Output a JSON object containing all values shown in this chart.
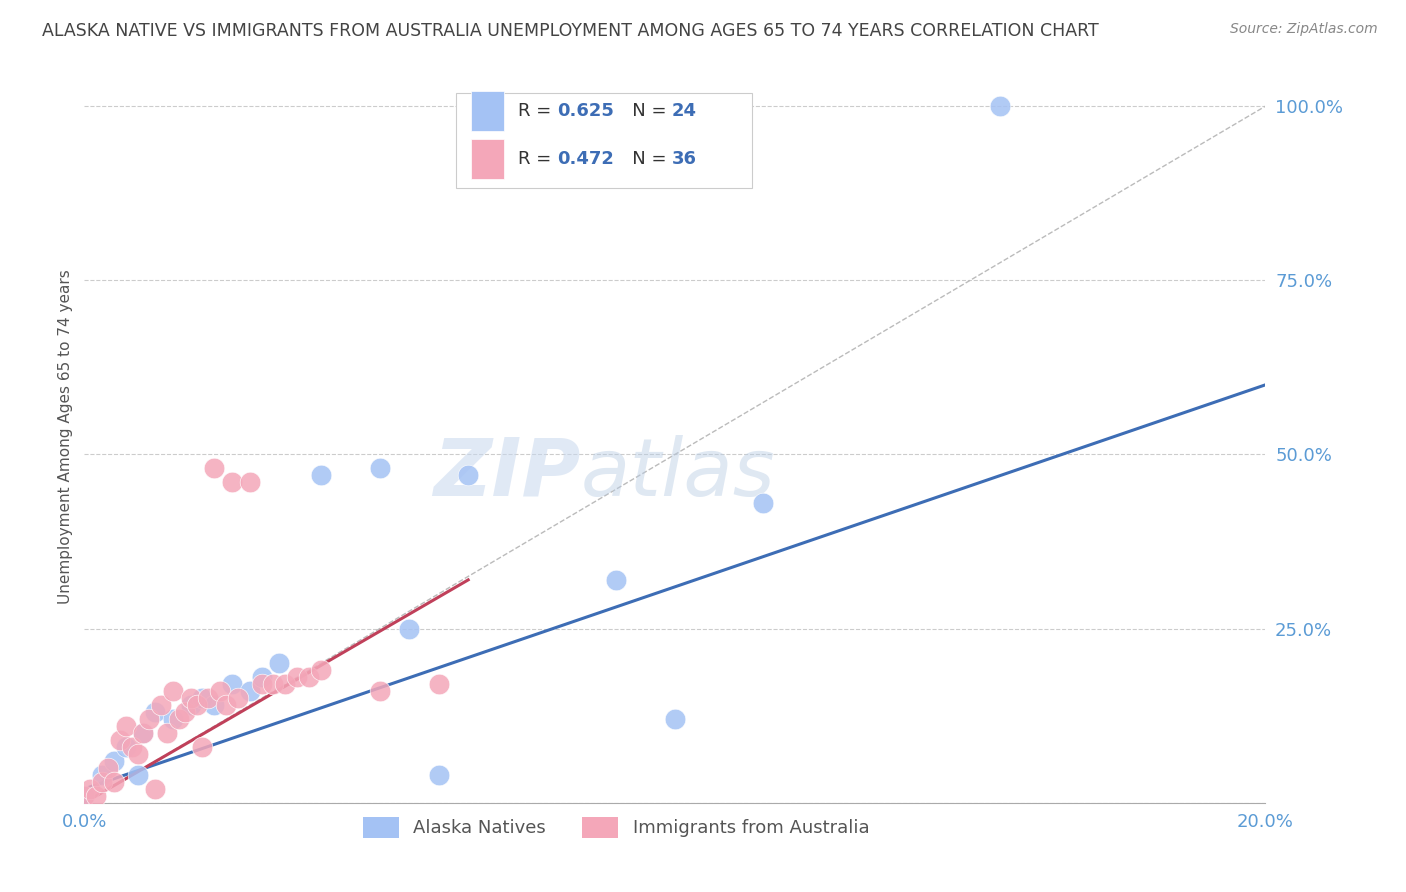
{
  "title": "ALASKA NATIVE VS IMMIGRANTS FROM AUSTRALIA UNEMPLOYMENT AMONG AGES 65 TO 74 YEARS CORRELATION CHART",
  "source": "Source: ZipAtlas.com",
  "ylabel": "Unemployment Among Ages 65 to 74 years",
  "xlim": [
    0.0,
    0.2
  ],
  "ylim": [
    0.0,
    1.05
  ],
  "yticks": [
    0.0,
    0.25,
    0.5,
    0.75,
    1.0
  ],
  "ytick_labels": [
    "",
    "25.0%",
    "50.0%",
    "75.0%",
    "100.0%"
  ],
  "xticks": [
    0.0,
    0.04,
    0.08,
    0.12,
    0.16,
    0.2
  ],
  "xtick_labels": [
    "0.0%",
    "",
    "",
    "",
    "",
    "20.0%"
  ],
  "alaska_color": "#a4c2f4",
  "australia_color": "#f4a7b9",
  "alaska_line_color": "#3d6db5",
  "australia_line_color": "#c0405a",
  "diagonal_color": "#bbbbbb",
  "alaska_scatter_x": [
    0.0,
    0.003,
    0.005,
    0.007,
    0.009,
    0.01,
    0.012,
    0.015,
    0.018,
    0.02,
    0.022,
    0.025,
    0.028,
    0.03,
    0.033,
    0.04,
    0.05,
    0.055,
    0.06,
    0.065,
    0.09,
    0.1,
    0.115,
    0.155
  ],
  "alaska_scatter_y": [
    0.01,
    0.04,
    0.06,
    0.08,
    0.04,
    0.1,
    0.13,
    0.12,
    0.14,
    0.15,
    0.14,
    0.17,
    0.16,
    0.18,
    0.2,
    0.47,
    0.48,
    0.25,
    0.04,
    0.47,
    0.32,
    0.12,
    0.43,
    1.0
  ],
  "australia_scatter_x": [
    0.0,
    0.001,
    0.002,
    0.003,
    0.004,
    0.005,
    0.006,
    0.007,
    0.008,
    0.009,
    0.01,
    0.011,
    0.012,
    0.013,
    0.014,
    0.015,
    0.016,
    0.017,
    0.018,
    0.019,
    0.02,
    0.021,
    0.022,
    0.023,
    0.024,
    0.025,
    0.026,
    0.028,
    0.03,
    0.032,
    0.034,
    0.036,
    0.038,
    0.04,
    0.05,
    0.06
  ],
  "australia_scatter_y": [
    0.01,
    0.02,
    0.01,
    0.03,
    0.05,
    0.03,
    0.09,
    0.11,
    0.08,
    0.07,
    0.1,
    0.12,
    0.02,
    0.14,
    0.1,
    0.16,
    0.12,
    0.13,
    0.15,
    0.14,
    0.08,
    0.15,
    0.48,
    0.16,
    0.14,
    0.46,
    0.15,
    0.46,
    0.17,
    0.17,
    0.17,
    0.18,
    0.18,
    0.19,
    0.16,
    0.17
  ],
  "alaska_line_x": [
    0.0,
    0.2
  ],
  "alaska_line_y": [
    0.02,
    0.6
  ],
  "australia_line_x": [
    0.0,
    0.065
  ],
  "australia_line_y": [
    0.0,
    0.32
  ],
  "diagonal_line_x": [
    0.0,
    0.2
  ],
  "diagonal_line_y": [
    0.0,
    1.0
  ],
  "watermark_zip": "ZIP",
  "watermark_atlas": "atlas",
  "background_color": "#ffffff",
  "title_color": "#444444",
  "axis_label_color": "#5b9bd5",
  "R_color": "#333333",
  "N_color": "#333333",
  "val_color": "#3d6db5",
  "legend_border_color": "#cccccc"
}
